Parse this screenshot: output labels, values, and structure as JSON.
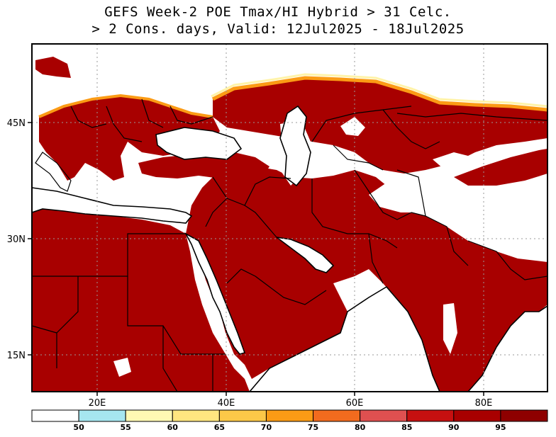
{
  "title": {
    "line1": "GEFS Week-2 POE Tmax/HI Hybrid > 31 Celc.",
    "line2": "> 2 Cons. days, Valid: 12Jul2025 - 18Jul2025"
  },
  "map": {
    "lon_range": [
      10,
      90
    ],
    "lat_range": [
      10,
      55
    ],
    "x_ticks": [
      {
        "value": 20,
        "label": "20E"
      },
      {
        "value": 40,
        "label": "40E"
      },
      {
        "value": 60,
        "label": "60E"
      },
      {
        "value": 80,
        "label": "80E"
      }
    ],
    "y_ticks": [
      {
        "value": 45,
        "label": "45N"
      },
      {
        "value": 30,
        "label": "30N"
      },
      {
        "value": 15,
        "label": "15N"
      }
    ],
    "grid": "dotted",
    "field_color": "#a80000",
    "land_outline_color": "#000000"
  },
  "colorbar": {
    "labels": [
      "50",
      "55",
      "60",
      "65",
      "70",
      "75",
      "80",
      "85",
      "90",
      "95"
    ],
    "colors": [
      "#ffffff",
      "#a6e6f0",
      "#fff9b3",
      "#ffe680",
      "#fcc848",
      "#fb9b15",
      "#f26b1e",
      "#df5050",
      "#c61010",
      "#a80000",
      "#8e0000"
    ]
  }
}
